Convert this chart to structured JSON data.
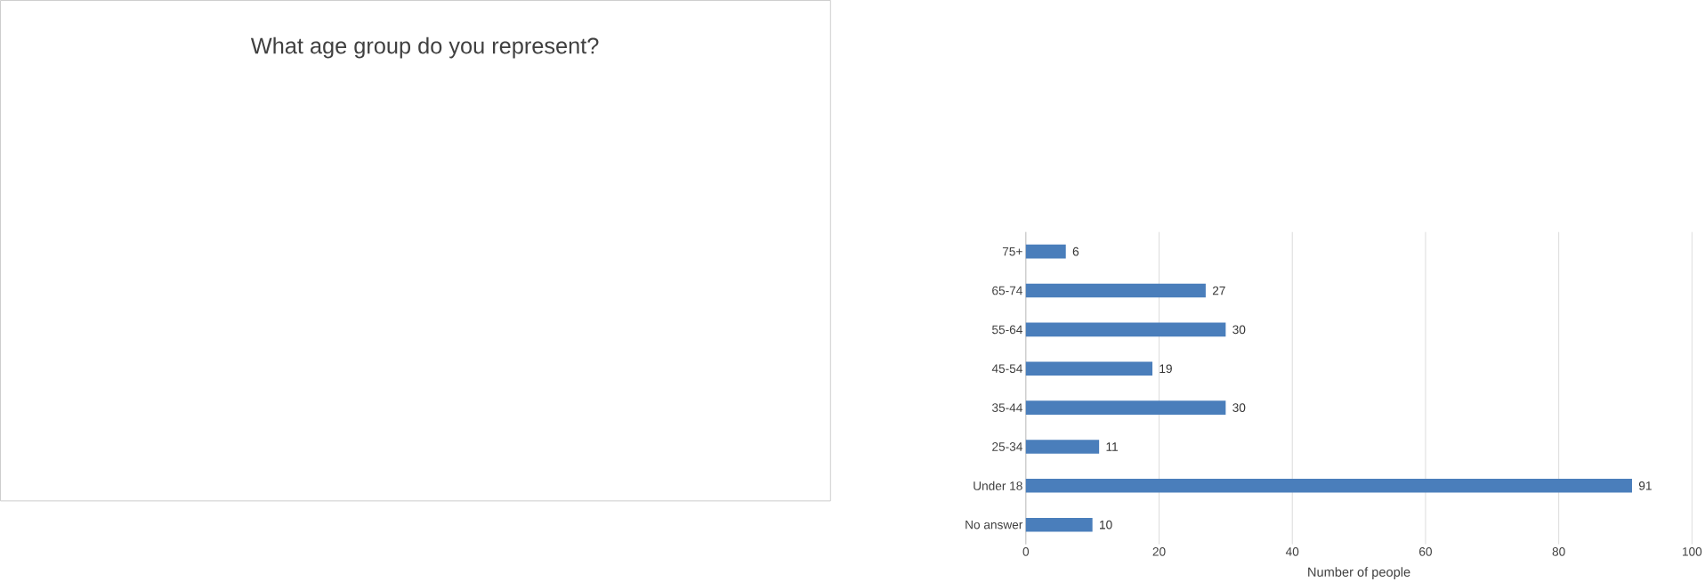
{
  "chart_data": {
    "type": "bar",
    "orientation": "horizontal",
    "title": "What age group do you represent?",
    "xlabel": "Number  of people",
    "categories": [
      "75+",
      "65-74",
      "55-64",
      "45-54",
      "35-44",
      "25-34",
      "Under 18",
      "No answer"
    ],
    "values": [
      6,
      27,
      30,
      19,
      30,
      11,
      91,
      10
    ],
    "color": "#4a7ebb",
    "xlim": [
      0,
      100
    ],
    "xticks": [
      0,
      20,
      40,
      60,
      80,
      100
    ],
    "grid": "x",
    "data_labels": true
  }
}
